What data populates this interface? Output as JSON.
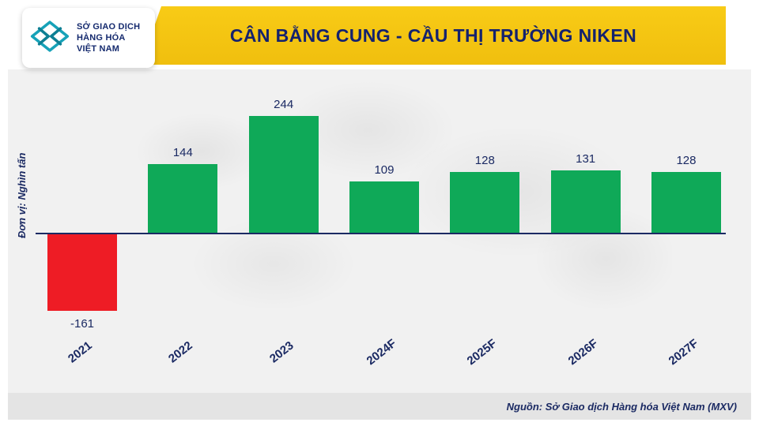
{
  "header": {
    "title": "CÂN BẰNG CUNG - CẦU THỊ TRƯỜNG NIKEN",
    "logo": {
      "lines": [
        "SỞ GIAO DỊCH",
        "HÀNG HÓA",
        "VIỆT NAM"
      ]
    }
  },
  "chart_data": {
    "type": "bar",
    "title": "CÂN BẰNG CUNG - CẦU THỊ TRƯỜNG NIKEN",
    "categories": [
      "2021",
      "2022",
      "2023",
      "2024F",
      "2025F",
      "2026F",
      "2027F"
    ],
    "values": [
      -161,
      144,
      244,
      109,
      128,
      131,
      128
    ],
    "xlabel": "",
    "ylabel": "Đơn vị: Nghìn tấn",
    "ylim": [
      -200,
      300
    ],
    "grid": false,
    "legend": "none",
    "positive_color": "#0FA958",
    "negative_color": "#EE1C25"
  },
  "footer": {
    "source": "Nguồn: Sở Giao dịch Hàng hóa Việt Nam (MXV)"
  },
  "colors": {
    "navy": "#1B2A63",
    "banner_yellow": "#F3C513",
    "logo_teal": "#17A2B8",
    "panel_gray": "#F1F1F1"
  }
}
